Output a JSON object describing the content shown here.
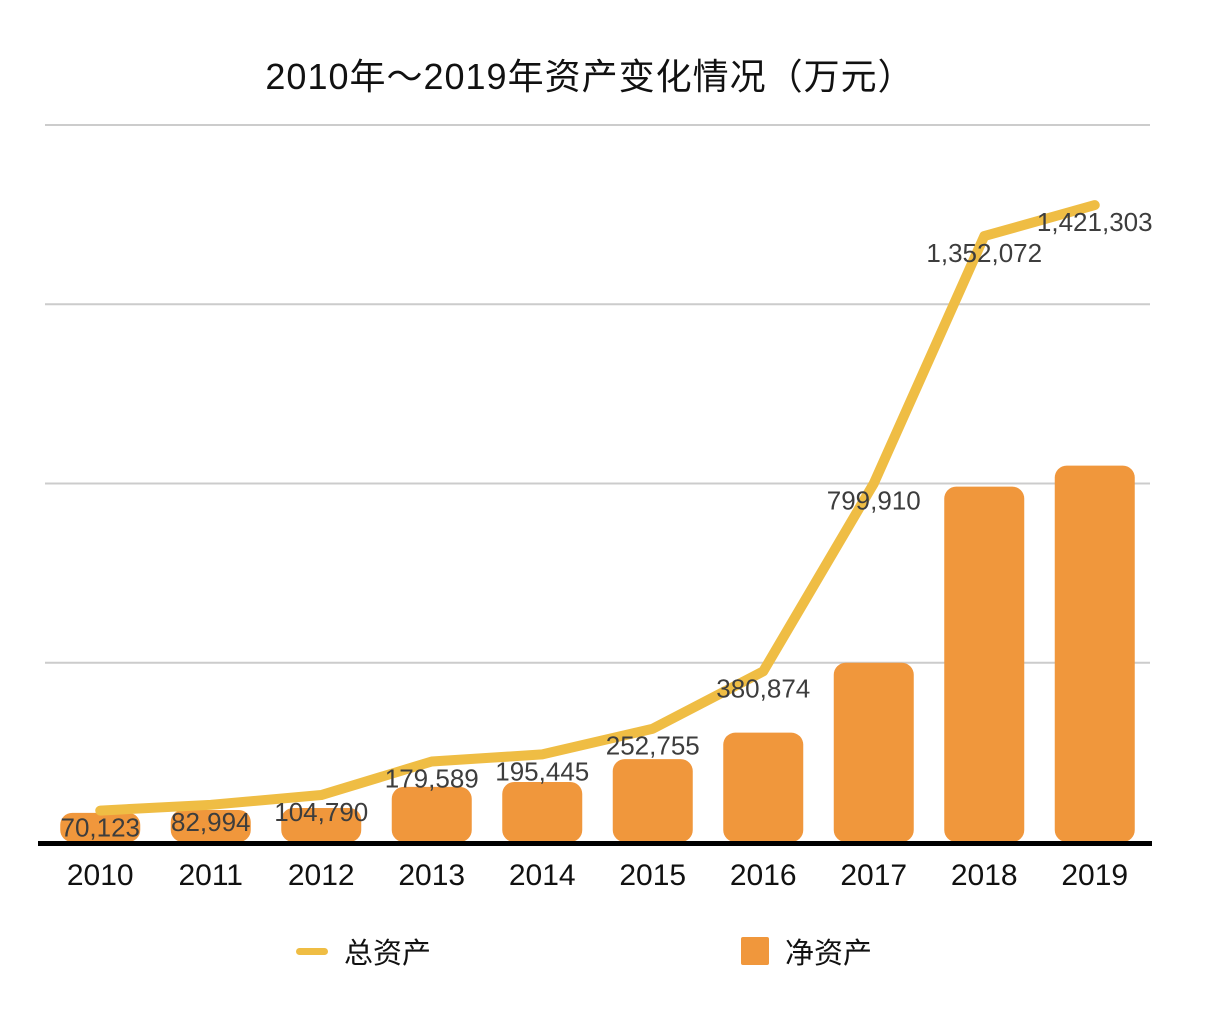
{
  "chart_data": {
    "type": "combo-line-bar",
    "title": "2010年～2019年资产变化情况（万元）",
    "categories": [
      "2010",
      "2011",
      "2012",
      "2013",
      "2014",
      "2015",
      "2016",
      "2017",
      "2018",
      "2019"
    ],
    "series": [
      {
        "name": "总资产",
        "type": "line",
        "color": "#EFBD44",
        "values": [
          70123,
          82994,
          104790,
          179589,
          195445,
          252755,
          380874,
          799910,
          1352072,
          1421303
        ],
        "labels": [
          "70,123",
          "82,994",
          "104,790",
          "179,589",
          "195,445",
          "252,755",
          "380,874",
          "799,910",
          "1,352,072",
          "1,421,303"
        ]
      },
      {
        "name": "净资产",
        "type": "bar",
        "color": "#F0973C",
        "values": [
          65000,
          71500,
          76000,
          123000,
          134000,
          185000,
          244000,
          400000,
          793000,
          840000
        ],
        "values_estimated": true
      }
    ],
    "ylim": [
      0,
      1600000
    ],
    "grid_interval": 400000,
    "grid": true,
    "gridline_color": "#cccccc",
    "axis_color": "#000000",
    "data_label_color": "#3d3d3d",
    "legend_position": "bottom"
  }
}
